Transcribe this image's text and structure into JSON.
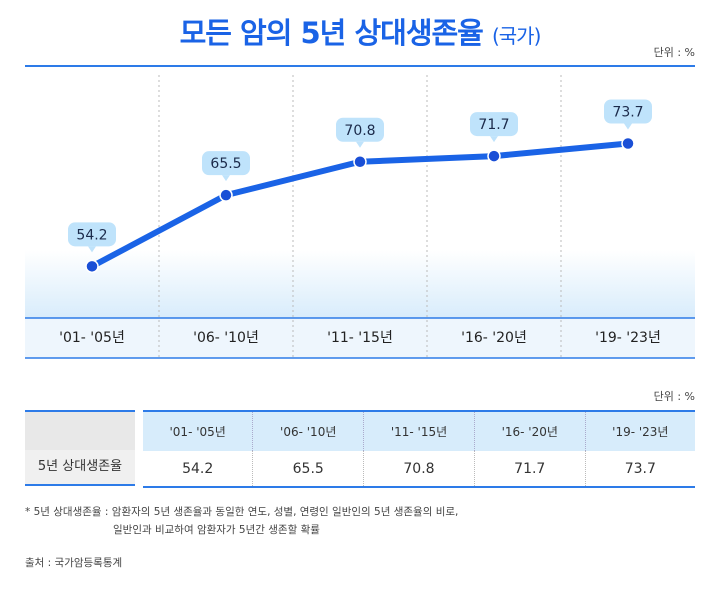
{
  "title": "모든 암의 5년 상대생존율",
  "title_suffix": "(국가)",
  "unit_label": "단위 : %",
  "chart_data": {
    "type": "line",
    "title": "모든 암의 5년 상대생존율 (국가)",
    "categories": [
      "'01- '05년",
      "'06- '10년",
      "'11- '15년",
      "'16- '20년",
      "'19- '23년"
    ],
    "series": [
      {
        "name": "5년 상대생존율",
        "values": [
          54.2,
          65.5,
          70.8,
          71.7,
          73.7
        ]
      }
    ],
    "ylim": [
      46,
      86
    ],
    "grid": false,
    "color": "#1a63e6"
  },
  "table": {
    "row_label": "5년 상대생존율",
    "headers": [
      "'01- '05년",
      "'06- '10년",
      "'11- '15년",
      "'16- '20년",
      "'19- '23년"
    ],
    "values": [
      "54.2",
      "65.5",
      "70.8",
      "71.7",
      "73.7"
    ]
  },
  "note": {
    "term": "* 5년 상대생존율 :",
    "line1": "암환자의 5년 생존율과 동일한 연도, 성별, 연령인 일반인의  5년 생존율의 비로,",
    "line2": "일반인과 비교하여 암환자가 5년간 생존할 확률"
  },
  "source": "출처 : 국가암등록통계"
}
